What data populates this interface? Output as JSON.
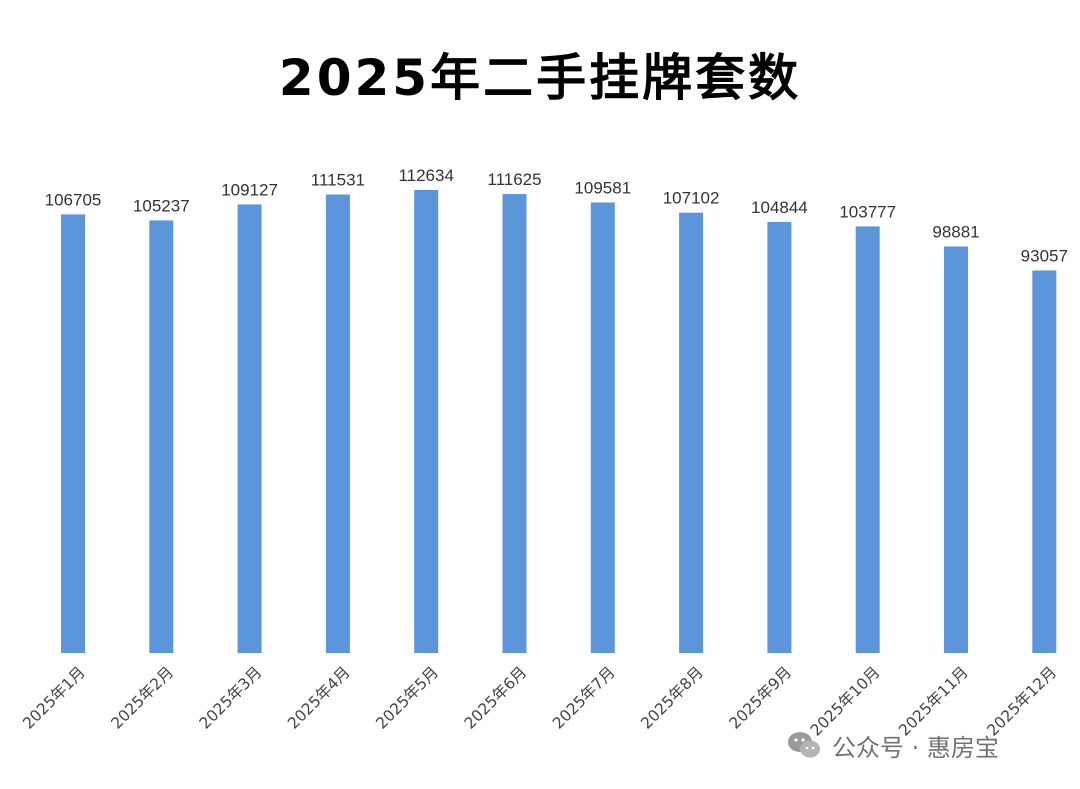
{
  "chart_data": {
    "type": "bar",
    "title": "2025年二手挂牌套数",
    "categories": [
      "2025年1月",
      "2025年2月",
      "2025年3月",
      "2025年4月",
      "2025年5月",
      "2025年6月",
      "2025年7月",
      "2025年8月",
      "2025年9月",
      "2025年10月",
      "2025年11月",
      "2025年12月"
    ],
    "values": [
      106705,
      105237,
      109127,
      111531,
      112634,
      111625,
      109581,
      107102,
      104844,
      103777,
      98881,
      93057
    ],
    "xlabel": "",
    "ylabel": "",
    "data_labels": true,
    "grid": false,
    "legend": "none",
    "bar_color": "#5b96dc"
  },
  "watermark": {
    "icon": "wechat-icon",
    "text": "公众号 · 惠房宝"
  }
}
